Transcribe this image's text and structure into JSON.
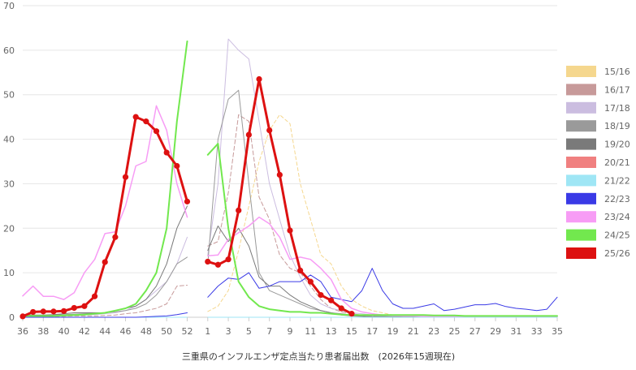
{
  "chart_data": {
    "type": "line",
    "title": "三重県のインフルエンザ定点当たり患者届出数　(2026年15週現在)",
    "xlabel": "",
    "ylabel": "",
    "ylim": [
      0,
      70
    ],
    "yticks": [
      0,
      10,
      20,
      30,
      40,
      50,
      60,
      70
    ],
    "grid": true,
    "legend_position": "right",
    "weeks": [
      36,
      37,
      38,
      39,
      40,
      41,
      42,
      43,
      44,
      45,
      46,
      47,
      48,
      49,
      50,
      51,
      52,
      53,
      1,
      2,
      3,
      4,
      5,
      6,
      7,
      8,
      9,
      10,
      11,
      12,
      13,
      14,
      15,
      16,
      17,
      18,
      19,
      20,
      21,
      22,
      23,
      24,
      25,
      26,
      27,
      28,
      29,
      30,
      31,
      32,
      33,
      34,
      35
    ],
    "x_tick_labels": [
      "36",
      "38",
      "40",
      "42",
      "44",
      "46",
      "48",
      "50",
      "52",
      "1",
      "3",
      "5",
      "7",
      "9",
      "11",
      "13",
      "15",
      "17",
      "19",
      "21",
      "23",
      "25",
      "27",
      "29",
      "31",
      "33",
      "35"
    ],
    "series": [
      {
        "name": "15/16",
        "color": "#f5d78e",
        "dash": "4,3",
        "width": 1,
        "values": [
          null,
          null,
          null,
          null,
          null,
          null,
          null,
          null,
          null,
          null,
          null,
          null,
          null,
          null,
          null,
          null,
          null,
          null,
          1.3,
          2.5,
          6,
          15,
          25,
          35,
          42,
          45.5,
          43.5,
          30,
          22,
          14,
          12,
          7,
          4,
          2.5,
          1.5,
          1,
          0.5,
          0.3,
          0.2,
          0.1,
          0.1,
          0.1,
          0.1,
          0.1,
          0.1,
          0.1,
          0.1,
          0.1,
          0.1,
          0.1,
          0.1,
          0.1,
          0.1
        ]
      },
      {
        "name": "16/17",
        "color": "#c79a9a",
        "dash": "5,3",
        "width": 1,
        "values": [
          0.2,
          0.2,
          0.2,
          0.2,
          0.2,
          0.3,
          0.3,
          0.3,
          0.4,
          0.5,
          0.8,
          1,
          1.5,
          2,
          3,
          7,
          7.2,
          null,
          16,
          17,
          28,
          45.5,
          44,
          27,
          22,
          14,
          11,
          10,
          7,
          4,
          2,
          1.2,
          0.8,
          0.5,
          0.3,
          0.2,
          0.1,
          0.1,
          0.1,
          0.1,
          0.1,
          0.1,
          0.1,
          0.1,
          0.1,
          0.1,
          0.1,
          0.1,
          0.1,
          0.1,
          0.1,
          0.1,
          0.1
        ]
      },
      {
        "name": "17/18",
        "color": "#cbbde0",
        "dash": "",
        "width": 1,
        "values": [
          0.2,
          0.2,
          0.2,
          0.3,
          0.3,
          0.4,
          0.5,
          0.6,
          0.8,
          1,
          1.5,
          2.5,
          4,
          6,
          8,
          12,
          18,
          null,
          14,
          30,
          62.5,
          60,
          58,
          44,
          30,
          22,
          14,
          9,
          5,
          3,
          2,
          1.5,
          1,
          0.8,
          0.5,
          0.3,
          0.2,
          0.2,
          0.1,
          0.1,
          0.1,
          0.1,
          0.1,
          0.1,
          0.1,
          0.1,
          0.1,
          0.1,
          0.1,
          0.1,
          0.1,
          0.1,
          0.1
        ]
      },
      {
        "name": "18/19",
        "color": "#9a9a9a",
        "dash": "",
        "width": 1,
        "values": [
          0.3,
          0.3,
          0.4,
          0.5,
          0.6,
          0.7,
          0.8,
          0.9,
          1,
          1.2,
          1.5,
          2,
          3,
          5,
          8,
          12,
          13.5,
          null,
          12,
          40,
          49,
          51,
          30,
          10,
          6,
          5,
          4,
          3,
          2,
          1.5,
          1,
          0.8,
          0.5,
          0.3,
          0.2,
          0.2,
          0.1,
          0.1,
          0.1,
          0.1,
          0.1,
          0.1,
          0.1,
          0.1,
          0.1,
          0.1,
          0.1,
          0.1,
          0.1,
          0.1,
          0.1,
          0.1,
          0.1
        ]
      },
      {
        "name": "19/20",
        "color": "#7a7a7a",
        "dash": "",
        "width": 1,
        "values": [
          0.5,
          0.5,
          0.5,
          0.6,
          0.8,
          1,
          1,
          1,
          1,
          1.5,
          2,
          2.5,
          4,
          7,
          12,
          20,
          25,
          null,
          15,
          20.5,
          17,
          20,
          16,
          9,
          7,
          7,
          5,
          3.5,
          2.5,
          1.5,
          1,
          0.5,
          0.3,
          0.2,
          0.1,
          0.1,
          0.1,
          0.1,
          0.1,
          0.1,
          0.1,
          0.1,
          0.1,
          0.1,
          0.1,
          0.1,
          0.1,
          0.1,
          0.1,
          0.1,
          0.1,
          0.1,
          0.1
        ]
      },
      {
        "name": "20/21",
        "color": "#f08080",
        "dash": "",
        "width": 1,
        "values": [
          0,
          0,
          0,
          0,
          0,
          0,
          0,
          0,
          0,
          0,
          0,
          0,
          0,
          0,
          0,
          0,
          0,
          null,
          0,
          0,
          0,
          0,
          0,
          0,
          0,
          0,
          0,
          0,
          0,
          0,
          0,
          0,
          0,
          0,
          0,
          0,
          0,
          0,
          0,
          0,
          0,
          0,
          0,
          0,
          0,
          0,
          0,
          0,
          0,
          0,
          0,
          0,
          0
        ]
      },
      {
        "name": "21/22",
        "color": "#9fe6f5",
        "dash": "",
        "width": 1,
        "values": [
          0,
          0,
          0,
          0,
          0,
          0,
          0,
          0,
          0,
          0,
          0,
          0,
          0,
          0,
          0,
          0,
          0,
          null,
          0,
          0,
          0,
          0,
          0,
          0,
          0,
          0,
          0,
          0,
          0,
          0,
          0,
          0,
          0,
          0,
          0,
          0,
          0,
          0,
          0,
          0,
          0,
          0,
          0,
          0,
          0,
          0,
          0,
          0,
          0,
          0,
          0,
          0,
          0
        ]
      },
      {
        "name": "22/23",
        "color": "#3a3ae6",
        "dash": "",
        "width": 1,
        "values": [
          0,
          0,
          0,
          0,
          0,
          0,
          0,
          0,
          0,
          0,
          0,
          0,
          0.1,
          0.2,
          0.3,
          0.6,
          1,
          null,
          4.5,
          7,
          8.8,
          8.5,
          10,
          6.5,
          7,
          8,
          8,
          8,
          9.5,
          8,
          4.5,
          4,
          3.5,
          6,
          11,
          6,
          3,
          2,
          2,
          2.5,
          3,
          1.5,
          1.8,
          2.3,
          2.8,
          2.8,
          3.1,
          2.4,
          2,
          1.8,
          1.5,
          1.8,
          4.5
        ]
      },
      {
        "name": "23/24",
        "color": "#f79cf5",
        "dash": "",
        "width": 1.5,
        "values": [
          4.8,
          7,
          4.7,
          4.7,
          4,
          5.5,
          10,
          13,
          18.8,
          19.2,
          25,
          34,
          35,
          47.5,
          42,
          30,
          22.5,
          null,
          13.8,
          14,
          17.5,
          19,
          20.5,
          22.5,
          21,
          18,
          13,
          13.5,
          13,
          11,
          8.5,
          4,
          2,
          1.2,
          0.8,
          0.5,
          0.4,
          0.3,
          0.3,
          0.2,
          0.2,
          0.2,
          0.2,
          0.2,
          0.2,
          0.2,
          0.2,
          0.2,
          0.2,
          0.2,
          0.2,
          0.2,
          0.2
        ]
      },
      {
        "name": "24/25",
        "color": "#72e84e",
        "dash": "",
        "width": 2,
        "values": [
          0.3,
          0.3,
          0.3,
          0.3,
          0.4,
          0.5,
          0.6,
          0.8,
          1,
          1.5,
          2,
          3,
          6,
          10,
          20,
          44,
          62,
          null,
          36.5,
          39,
          20,
          8,
          4.5,
          2.5,
          1.8,
          1.5,
          1.2,
          1.2,
          1,
          1,
          0.8,
          0.6,
          0.5,
          0.5,
          0.5,
          0.5,
          0.5,
          0.5,
          0.5,
          0.5,
          0.4,
          0.4,
          0.4,
          0.3,
          0.3,
          0.3,
          0.3,
          0.3,
          0.3,
          0.3,
          0.3,
          0.3,
          0.3
        ]
      },
      {
        "name": "25/26",
        "color": "#dd1111",
        "dash": "",
        "width": 3,
        "markers": true,
        "values": [
          0.2,
          1.2,
          1.3,
          1.3,
          1.4,
          2.1,
          2.5,
          4.7,
          12.4,
          18,
          31.5,
          45,
          44,
          41.8,
          37,
          34,
          26,
          null,
          12.5,
          11.8,
          13,
          24,
          41,
          53.5,
          42,
          32,
          19.5,
          10.5,
          8,
          5,
          3.8,
          2,
          0.8,
          null,
          null,
          null,
          null,
          null,
          null,
          null,
          null,
          null,
          null,
          null,
          null,
          null,
          null,
          null,
          null,
          null,
          null,
          null,
          null
        ]
      }
    ]
  }
}
